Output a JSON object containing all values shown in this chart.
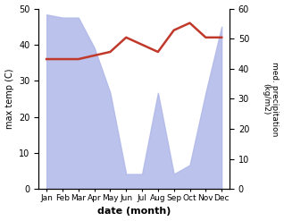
{
  "months": [
    "Jan",
    "Feb",
    "Mar",
    "Apr",
    "May",
    "Jun",
    "Jul",
    "Aug",
    "Sep",
    "Oct",
    "Nov",
    "Dec"
  ],
  "precipitation": [
    58,
    57,
    57,
    47,
    32,
    5,
    5,
    32,
    5,
    8,
    32,
    54
  ],
  "temperature": [
    36,
    36,
    36,
    37,
    38,
    42,
    40,
    38,
    44,
    46,
    42,
    42
  ],
  "left_ylabel": "max temp (C)",
  "right_ylabel": "med. precipitation\n(kg/m2)",
  "xlabel": "date (month)",
  "ylim_left": [
    0,
    50
  ],
  "ylim_right": [
    0,
    60
  ],
  "temp_color": "#c0392b",
  "precip_fill_color": "#b0b8e8",
  "precip_edge_color": "#b0b8e8",
  "precip_fill_alpha": 0.85
}
